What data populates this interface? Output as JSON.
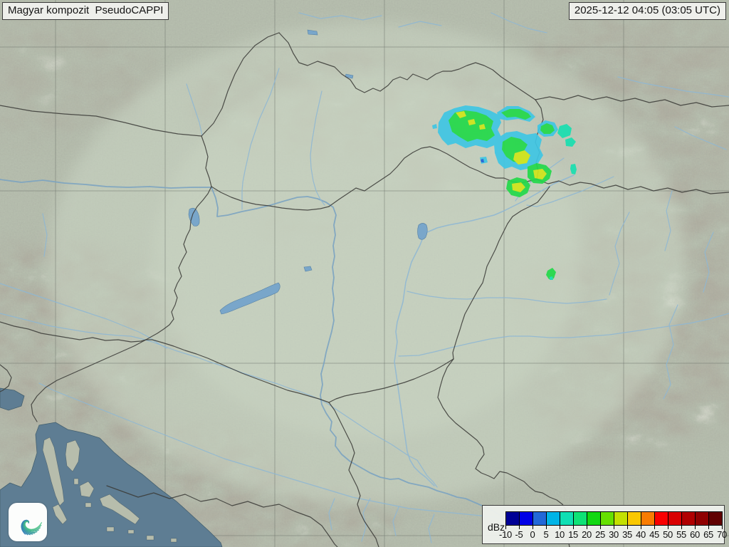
{
  "header": {
    "title": "Magyar kompozit  PseudoCAPPI",
    "timestamp": "2025-12-12 04:05 (03:05 UTC)"
  },
  "legend": {
    "unit": "dBz",
    "tick_labels": [
      "-10",
      "-5",
      "0",
      "5",
      "10",
      "15",
      "20",
      "25",
      "30",
      "35",
      "40",
      "45",
      "50",
      "55",
      "60",
      "65",
      "70"
    ],
    "colors": [
      "#000096",
      "#0000e6",
      "#2268d8",
      "#00b4e6",
      "#0fdfb4",
      "#0ee276",
      "#12d812",
      "#66e000",
      "#c3e000",
      "#fac800",
      "#f97c00",
      "#fa0000",
      "#d90000",
      "#b00000",
      "#8f0000",
      "#600000"
    ]
  },
  "logo": {
    "icon": "hungaromet-swirl",
    "start_color": "#2f7cb5",
    "end_color": "#4ac386",
    "background": "#fcfdfc"
  },
  "map": {
    "palette": {
      "terrain_base": "#b6beae",
      "coverage_tint": "#ccd8c5",
      "sea": "#5e7d93",
      "lake": "#79a6ca",
      "river": "#8fb7d3",
      "border": "#3b3b38",
      "graticule": "#6e736c"
    },
    "echo_palette": {
      "cyan": "#3fc6e4",
      "teal": "#19dfb0",
      "green": "#23d94a",
      "yellow_green": "#cfe51a",
      "blue": "#2061d6"
    }
  }
}
